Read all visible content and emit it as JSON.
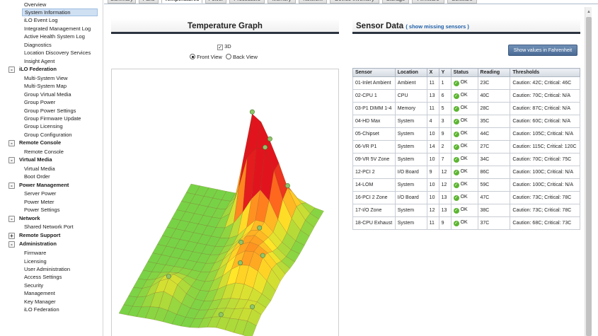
{
  "sidebar": {
    "items": [
      {
        "label": "Overview",
        "kind": "item"
      },
      {
        "label": "System Information",
        "kind": "item",
        "selected": true
      },
      {
        "label": "iLO Event Log",
        "kind": "item"
      },
      {
        "label": "Integrated Management Log",
        "kind": "item"
      },
      {
        "label": "Active Health System Log",
        "kind": "item"
      },
      {
        "label": "Diagnostics",
        "kind": "item"
      },
      {
        "label": "Location Discovery Services",
        "kind": "item"
      },
      {
        "label": "Insight Agent",
        "kind": "item"
      },
      {
        "label": "iLO Federation",
        "kind": "section",
        "toggle": "-"
      },
      {
        "label": "Multi-System View",
        "kind": "item"
      },
      {
        "label": "Multi-System Map",
        "kind": "item"
      },
      {
        "label": "Group Virtual Media",
        "kind": "item"
      },
      {
        "label": "Group Power",
        "kind": "item"
      },
      {
        "label": "Group Power Settings",
        "kind": "item"
      },
      {
        "label": "Group Firmware Update",
        "kind": "item"
      },
      {
        "label": "Group Licensing",
        "kind": "item"
      },
      {
        "label": "Group Configuration",
        "kind": "item"
      },
      {
        "label": "Remote Console",
        "kind": "section",
        "toggle": "-"
      },
      {
        "label": "Remote Console",
        "kind": "item"
      },
      {
        "label": "Virtual Media",
        "kind": "section",
        "toggle": "-"
      },
      {
        "label": "Virtual Media",
        "kind": "item"
      },
      {
        "label": "Boot Order",
        "kind": "item"
      },
      {
        "label": "Power Management",
        "kind": "section",
        "toggle": "-"
      },
      {
        "label": "Server Power",
        "kind": "item"
      },
      {
        "label": "Power Meter",
        "kind": "item"
      },
      {
        "label": "Power Settings",
        "kind": "item"
      },
      {
        "label": "Network",
        "kind": "section",
        "toggle": "-"
      },
      {
        "label": "Shared Network Port",
        "kind": "item"
      },
      {
        "label": "Remote Support",
        "kind": "section",
        "toggle": "+"
      },
      {
        "label": "Administration",
        "kind": "section",
        "toggle": "-"
      },
      {
        "label": "Firmware",
        "kind": "item"
      },
      {
        "label": "Licensing",
        "kind": "item"
      },
      {
        "label": "User Administration",
        "kind": "item"
      },
      {
        "label": "Access Settings",
        "kind": "item"
      },
      {
        "label": "Security",
        "kind": "item"
      },
      {
        "label": "Management",
        "kind": "item"
      },
      {
        "label": "Key Manager",
        "kind": "item"
      },
      {
        "label": "iLO Federation",
        "kind": "item"
      }
    ]
  },
  "tabs": [
    {
      "label": "Summary"
    },
    {
      "label": "Fans"
    },
    {
      "label": "Temperatures",
      "active": true
    },
    {
      "label": "Power"
    },
    {
      "label": "Processors"
    },
    {
      "label": "Memory"
    },
    {
      "label": "Network"
    },
    {
      "label": "Device Inventory"
    },
    {
      "label": "Storage"
    },
    {
      "label": "Firmware"
    },
    {
      "label": "Software"
    }
  ],
  "graph": {
    "title": "Temperature Graph",
    "option_3d": "3D",
    "front_view": "Front View",
    "back_view": "Back View"
  },
  "sensor": {
    "title": "Sensor Data",
    "missing_link": "( show missing sensors )",
    "fahrenheit_button": "Show values in Fahrenheit",
    "columns": [
      "Sensor",
      "Location",
      "X",
      "Y",
      "Status",
      "Reading",
      "Thresholds"
    ],
    "rows": [
      {
        "sensor": "01-Inlet Ambient",
        "location": "Ambient",
        "x": "11",
        "y": "1",
        "status": "OK",
        "reading": "23C",
        "thresholds": "Caution: 42C; Critical: 46C"
      },
      {
        "sensor": "02-CPU 1",
        "location": "CPU",
        "x": "13",
        "y": "6",
        "status": "OK",
        "reading": "40C",
        "thresholds": "Caution: 70C; Critical: N/A"
      },
      {
        "sensor": "03-P1 DIMM 1-4",
        "location": "Memory",
        "x": "11",
        "y": "5",
        "status": "OK",
        "reading": "28C",
        "thresholds": "Caution: 87C; Critical: N/A"
      },
      {
        "sensor": "04-HD Max",
        "location": "System",
        "x": "4",
        "y": "3",
        "status": "OK",
        "reading": "35C",
        "thresholds": "Caution: 60C; Critical: N/A"
      },
      {
        "sensor": "05-Chipset",
        "location": "System",
        "x": "10",
        "y": "9",
        "status": "OK",
        "reading": "44C",
        "thresholds": "Caution: 105C; Critical: N/A"
      },
      {
        "sensor": "06-VR P1",
        "location": "System",
        "x": "14",
        "y": "2",
        "status": "OK",
        "reading": "27C",
        "thresholds": "Caution: 115C; Critical: 120C"
      },
      {
        "sensor": "09-VR 5V Zone",
        "location": "System",
        "x": "10",
        "y": "7",
        "status": "OK",
        "reading": "34C",
        "thresholds": "Caution: 70C; Critical: 75C"
      },
      {
        "sensor": "12-PCI 2",
        "location": "I/O Board",
        "x": "9",
        "y": "12",
        "status": "OK",
        "reading": "86C",
        "thresholds": "Caution: 100C; Critical: N/A"
      },
      {
        "sensor": "14-LOM",
        "location": "System",
        "x": "10",
        "y": "12",
        "status": "OK",
        "reading": "59C",
        "thresholds": "Caution: 100C; Critical: N/A"
      },
      {
        "sensor": "16-PCI 2 Zone",
        "location": "I/O Board",
        "x": "10",
        "y": "13",
        "status": "OK",
        "reading": "47C",
        "thresholds": "Caution: 73C; Critical: 78C"
      },
      {
        "sensor": "17-I/O Zone",
        "location": "System",
        "x": "12",
        "y": "13",
        "status": "OK",
        "reading": "38C",
        "thresholds": "Caution: 73C; Critical: 78C"
      },
      {
        "sensor": "18-CPU Exhaust",
        "location": "System",
        "x": "11",
        "y": "9",
        "status": "OK",
        "reading": "37C",
        "thresholds": "Caution: 68C; Critical: 73C"
      }
    ]
  },
  "colors": {
    "accent": "#4a6b95",
    "ok": "#5cb531",
    "link": "#1f5fa8",
    "selected_bg": "#cfe0f3"
  }
}
